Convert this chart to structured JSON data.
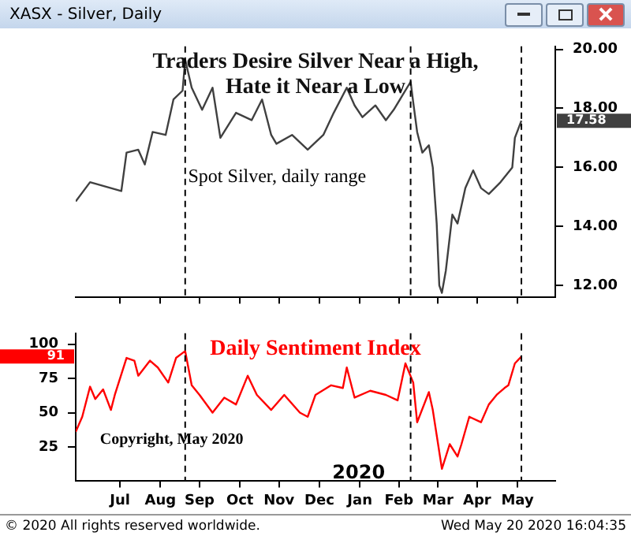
{
  "chart_data": [
    {
      "type": "line",
      "title": "Traders Desire Silver Near a High, Hate it Near a Low",
      "x": [
        "2019-06-12",
        "2019-06-23",
        "2019-07-17",
        "2019-07-21",
        "2019-07-30",
        "2019-08-04",
        "2019-08-10",
        "2019-08-20",
        "2019-08-26",
        "2019-09-02",
        "2019-09-04",
        "2019-09-09",
        "2019-09-17",
        "2019-09-25",
        "2019-10-01",
        "2019-10-13",
        "2019-10-25",
        "2019-11-02",
        "2019-11-09",
        "2019-11-13",
        "2019-11-25",
        "2019-12-07",
        "2019-12-19",
        "2019-12-27",
        "2020-01-06",
        "2020-01-12",
        "2020-01-18",
        "2020-01-28",
        "2020-02-05",
        "2020-02-11",
        "2020-02-24",
        "2020-02-26",
        "2020-02-29",
        "2020-03-04",
        "2020-03-09",
        "2020-03-12",
        "2020-03-15",
        "2020-03-17",
        "2020-03-19",
        "2020-03-22",
        "2020-03-27",
        "2020-03-31",
        "2020-04-06",
        "2020-04-12",
        "2020-04-18",
        "2020-04-24",
        "2020-05-03",
        "2020-05-12",
        "2020-05-14",
        "2020-05-19"
      ],
      "series": [
        {
          "color": "#404040",
          "values": [
            14.85,
            15.5,
            15.2,
            16.5,
            16.6,
            16.1,
            17.2,
            17.1,
            18.3,
            18.6,
            19.65,
            18.7,
            17.95,
            18.7,
            17.0,
            17.85,
            17.6,
            18.3,
            17.1,
            16.8,
            17.1,
            16.6,
            17.1,
            17.85,
            18.7,
            18.1,
            17.7,
            18.1,
            17.6,
            17.95,
            18.9,
            18.2,
            17.2,
            16.5,
            16.75,
            16.0,
            14.1,
            12.0,
            11.75,
            12.5,
            14.4,
            14.1,
            15.3,
            15.9,
            15.3,
            15.1,
            15.5,
            16.0,
            17.0,
            17.58
          ]
        }
      ],
      "xlim": [
        "2019-06-12",
        "2020-06-14"
      ],
      "xticks": [
        {
          "value": "2019-07-16",
          "label": null
        },
        {
          "value": "2019-08-16",
          "label": null
        },
        {
          "value": "2019-09-15",
          "label": null
        },
        {
          "value": "2019-10-16",
          "label": null
        },
        {
          "value": "2019-11-15",
          "label": null
        },
        {
          "value": "2019-12-16",
          "label": null
        },
        {
          "value": "2020-01-16",
          "label": null
        },
        {
          "value": "2020-02-15",
          "label": null
        },
        {
          "value": "2020-03-16",
          "label": null
        },
        {
          "value": "2020-04-15",
          "label": null
        },
        {
          "value": "2020-05-16",
          "label": null
        }
      ],
      "ylim": [
        11.6,
        20.1
      ],
      "yticks": [
        {
          "value": 12,
          "label": "12.00"
        },
        {
          "value": 14,
          "label": "14.00"
        },
        {
          "value": 16,
          "label": "16.00"
        },
        {
          "value": 18,
          "label": "18.00"
        },
        {
          "value": 20,
          "label": "20.00"
        }
      ],
      "tick_labels": "y",
      "grid": false,
      "legend": false,
      "ref_lines": [
        {
          "axis": "x",
          "value": "2019-09-04",
          "color": "#000000",
          "line_style": "dashed"
        },
        {
          "axis": "x",
          "value": "2020-02-24",
          "color": "#000000",
          "line_style": "dashed"
        },
        {
          "axis": "x",
          "value": "2020-05-19",
          "color": "#000000",
          "line_style": "dashed"
        }
      ],
      "annotations": [
        "XASX - Silver, Daily",
        "Spot Silver, daily range",
        "17.58"
      ]
    },
    {
      "type": "line",
      "title": "Daily Sentiment Index",
      "x": [
        "2019-06-12",
        "2019-06-17",
        "2019-06-23",
        "2019-06-27",
        "2019-07-03",
        "2019-07-09",
        "2019-07-12",
        "2019-07-21",
        "2019-07-27",
        "2019-07-30",
        "2019-08-08",
        "2019-08-14",
        "2019-08-22",
        "2019-08-28",
        "2019-09-04",
        "2019-09-09",
        "2019-09-15",
        "2019-09-25",
        "2019-10-04",
        "2019-10-13",
        "2019-10-22",
        "2019-10-29",
        "2019-11-09",
        "2019-11-19",
        "2019-12-01",
        "2019-12-07",
        "2019-12-13",
        "2019-12-25",
        "2020-01-03",
        "2020-01-06",
        "2020-01-12",
        "2020-01-24",
        "2020-02-05",
        "2020-02-14",
        "2020-02-20",
        "2020-02-26",
        "2020-02-29",
        "2020-03-09",
        "2020-03-12",
        "2020-03-19",
        "2020-03-25",
        "2020-03-31",
        "2020-04-03",
        "2020-04-09",
        "2020-04-18",
        "2020-04-24",
        "2020-04-30",
        "2020-05-06",
        "2020-05-09",
        "2020-05-14",
        "2020-05-19"
      ],
      "series": [
        {
          "color": "#ff0000",
          "values": [
            36,
            47,
            69,
            60,
            67,
            52,
            63,
            90,
            88,
            77,
            88,
            83,
            72,
            90,
            95,
            70,
            63,
            50,
            61,
            56,
            77,
            63,
            52,
            63,
            50,
            47,
            63,
            70,
            68,
            83,
            61,
            66,
            63,
            59,
            86,
            72,
            43,
            65,
            52,
            9,
            27,
            18,
            27,
            47,
            43,
            56,
            63,
            68,
            70,
            86,
            91
          ]
        }
      ],
      "xlim": [
        "2019-06-12",
        "2020-06-14"
      ],
      "xticks": [
        {
          "value": "2019-07-16",
          "label": "Jul"
        },
        {
          "value": "2019-08-16",
          "label": "Aug"
        },
        {
          "value": "2019-09-15",
          "label": "Sep"
        },
        {
          "value": "2019-10-16",
          "label": "Oct"
        },
        {
          "value": "2019-11-15",
          "label": "Nov"
        },
        {
          "value": "2019-12-16",
          "label": "Dec"
        },
        {
          "value": "2020-01-16",
          "label": "Jan"
        },
        {
          "value": "2020-02-15",
          "label": "Feb"
        },
        {
          "value": "2020-03-16",
          "label": "Mar"
        },
        {
          "value": "2020-04-15",
          "label": "Apr"
        },
        {
          "value": "2020-05-16",
          "label": "May"
        }
      ],
      "ylim": [
        0,
        108
      ],
      "yticks": [
        25,
        50,
        75,
        100
      ],
      "grid": false,
      "legend": false,
      "ref_lines": [
        {
          "axis": "x",
          "value": "2019-09-04",
          "color": "#000000",
          "line_style": "dashed"
        },
        {
          "axis": "x",
          "value": "2020-02-24",
          "color": "#000000",
          "line_style": "dashed"
        },
        {
          "axis": "x",
          "value": "2020-05-19",
          "color": "#000000",
          "line_style": "dashed"
        }
      ],
      "annotations": [
        "91",
        "Copyright, May 2020",
        "2020",
        "© 2020 All rights reserved worldwide.",
        "Wed May 20 2020 16:04:35"
      ]
    }
  ]
}
